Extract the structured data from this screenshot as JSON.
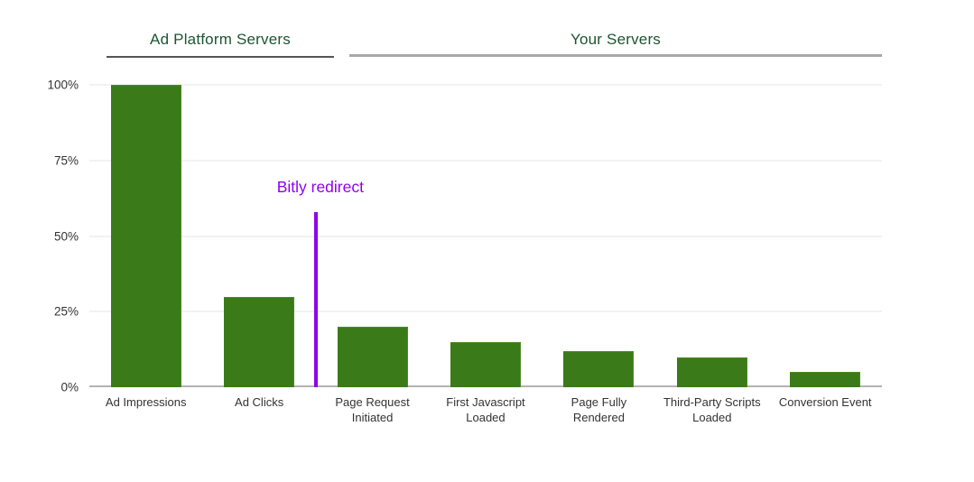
{
  "colors": {
    "background": "#FFFFFF",
    "bar": "#3A7A18",
    "bar_edge": "#4C8C26",
    "header_text": "#1C5531",
    "annotation": "#9000EC",
    "axis_text": "#333333",
    "gridline": "#E6E6E6",
    "axis_line": "#B3B3B3",
    "group1_underline": "#555555",
    "group2_underline": "#A8A8A8"
  },
  "annotation": {
    "label": "Bitly redirect",
    "between_categories": [
      "Ad Clicks",
      "Page Request Initiated"
    ],
    "height_pct": 58
  },
  "chart_data": {
    "type": "bar",
    "title": "",
    "categories": [
      "Ad Impressions",
      "Ad Clicks",
      "Page Request Initiated",
      "First Javascript Loaded",
      "Page Fully Rendered",
      "Third-Party Scripts Loaded",
      "Conversion Event"
    ],
    "values": [
      100,
      30,
      20,
      15,
      12,
      10,
      5
    ],
    "unit": "%",
    "xlabel": "",
    "ylabel": "",
    "ylim": [
      0,
      100
    ],
    "yticks": [
      0,
      25,
      50,
      75,
      100
    ],
    "ytick_labels": [
      "0%",
      "25%",
      "50%",
      "75%",
      "100%"
    ],
    "grid": true,
    "legend": "none",
    "bar_color": "#3A7A18",
    "group_spans": [
      {
        "label": "Ad Platform Servers",
        "categories": [
          "Ad Impressions",
          "Ad Clicks"
        ]
      },
      {
        "label": "Your Servers",
        "categories": [
          "Page Request Initiated",
          "First Javascript Loaded",
          "Page Fully Rendered",
          "Third-Party Scripts Loaded",
          "Conversion Event"
        ]
      }
    ]
  }
}
